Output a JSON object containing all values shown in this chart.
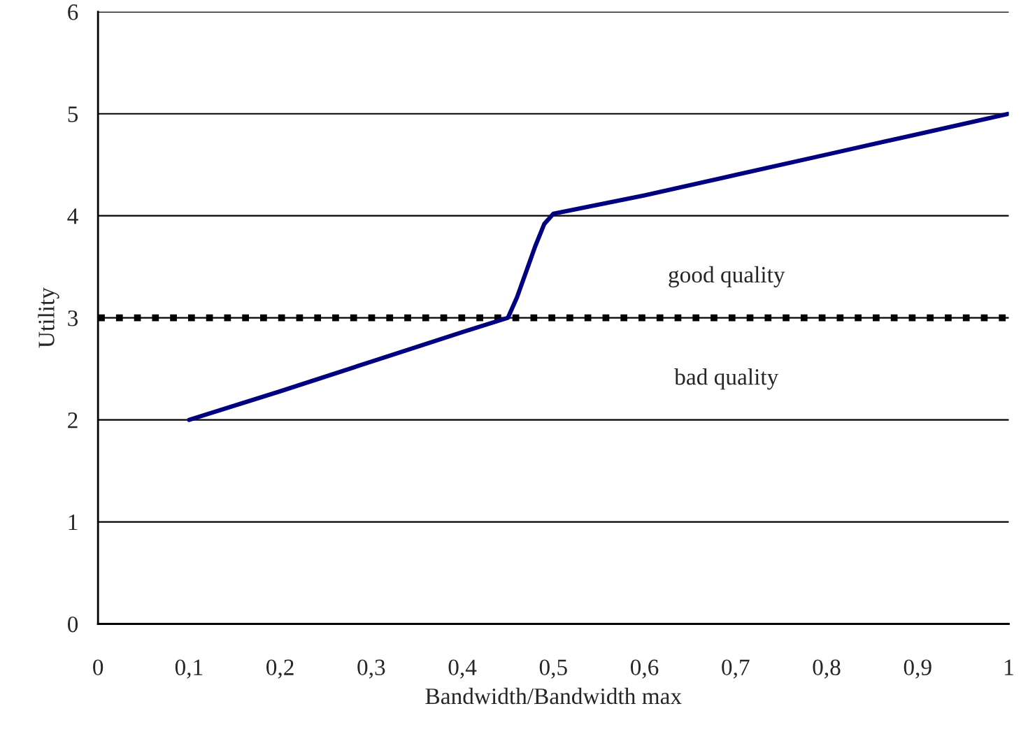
{
  "chart_data": {
    "type": "line",
    "xlabel": "Bandwidth/Bandwidth max",
    "ylabel": "Utility",
    "x": [
      0.1,
      0.2,
      0.3,
      0.4,
      0.45,
      0.46,
      0.48,
      0.49,
      0.5,
      0.6,
      0.7,
      0.8,
      0.9,
      1.0
    ],
    "series": [
      {
        "color": "#000080",
        "values": [
          2.0,
          2.28,
          2.57,
          2.86,
          3.0,
          3.2,
          3.7,
          3.92,
          4.02,
          4.2,
          4.4,
          4.6,
          4.8,
          5.0
        ]
      }
    ],
    "xlim": [
      0,
      1
    ],
    "ylim": [
      0,
      6
    ],
    "xticks": [
      0,
      {
        "value": 0.1,
        "label": "0,1"
      },
      {
        "value": 0.2,
        "label": "0,2"
      },
      {
        "value": 0.3,
        "label": "0,3"
      },
      {
        "value": 0.4,
        "label": "0,4"
      },
      {
        "value": 0.5,
        "label": "0,5"
      },
      {
        "value": 0.6,
        "label": "0,6"
      },
      {
        "value": 0.7,
        "label": "0,7"
      },
      {
        "value": 0.8,
        "label": "0,8"
      },
      {
        "value": 0.9,
        "label": "0,9"
      },
      1
    ],
    "yticks": [
      0,
      1,
      2,
      3,
      4,
      5,
      6
    ],
    "grid": "y",
    "marker": "none",
    "line_style": "solid",
    "ref_lines": [
      {
        "axis": "y",
        "value": 3,
        "color": "#000000",
        "line_style": "dotted"
      }
    ],
    "annotations": [
      "good quality",
      "bad quality"
    ]
  }
}
